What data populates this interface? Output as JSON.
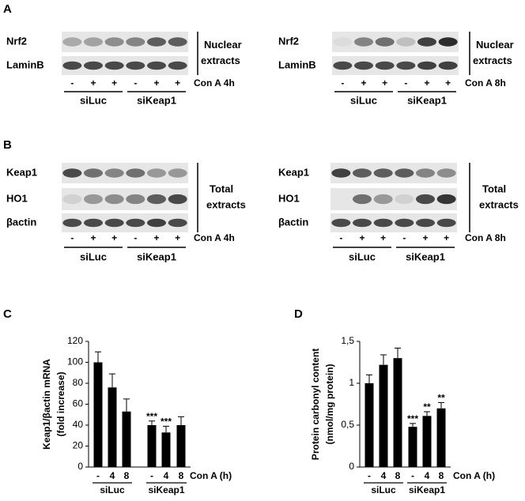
{
  "panels": [
    {
      "label": "A",
      "blots": [
        {
          "rows": [
            "Nrf2",
            "LaminB"
          ],
          "bracket": [
            "Nuclear",
            "extracts"
          ],
          "treatment": [
            "-",
            "+",
            "+",
            "-",
            "+",
            "+"
          ],
          "condition": "Con A 4h",
          "groups": [
            "siLuc",
            "siKeap1"
          ]
        },
        {
          "rows": [
            "Nrf2",
            "LaminB"
          ],
          "bracket": [
            "Nuclear",
            "extracts"
          ],
          "treatment": [
            "-",
            "+",
            "+",
            "-",
            "+",
            "+"
          ],
          "condition": "Con A 8h",
          "groups": [
            "siLuc",
            "siKeap1"
          ]
        }
      ]
    },
    {
      "label": "B",
      "blots": [
        {
          "rows": [
            "Keap1",
            "HO1",
            "βactin"
          ],
          "bracket": [
            "Total",
            "extracts"
          ],
          "treatment": [
            "-",
            "+",
            "+",
            "-",
            "+",
            "+"
          ],
          "condition": "Con A 4h",
          "groups": [
            "siLuc",
            "siKeap1"
          ]
        },
        {
          "rows": [
            "Keap1",
            "HO1",
            "βactin"
          ],
          "bracket": [
            "Total",
            "extracts"
          ],
          "treatment": [
            "-",
            "+",
            "+",
            "-",
            "+",
            "+"
          ],
          "condition": "Con A 8h",
          "groups": [
            "siLuc",
            "siKeap1"
          ]
        }
      ]
    }
  ],
  "chart_data": [
    {
      "type": "bar",
      "panel": "C",
      "ylabel": [
        "Keap1/βactin mRNA",
        "(fold increase)"
      ],
      "xlabel": "Con A (h)",
      "categories": [
        "-",
        "4",
        "8",
        "-",
        "4",
        "8"
      ],
      "groups": [
        "siLuc",
        "siKeap1"
      ],
      "values": [
        100,
        76,
        53,
        40,
        33,
        40
      ],
      "errors": [
        10,
        13,
        12,
        4,
        6,
        8
      ],
      "significance": [
        null,
        null,
        null,
        "***",
        "***",
        null
      ],
      "color": "#000000",
      "ylim": [
        0,
        120
      ],
      "yticks": [
        0,
        20,
        40,
        60,
        80,
        100,
        120
      ]
    },
    {
      "type": "bar",
      "panel": "D",
      "ylabel": [
        "Protein carbonyl content",
        "(nmol/mg protein)"
      ],
      "xlabel": "Con A (h)",
      "categories": [
        "-",
        "4",
        "8",
        "-",
        "4",
        "8"
      ],
      "groups": [
        "siLuc",
        "siKeap1"
      ],
      "values": [
        1.0,
        1.22,
        1.3,
        0.48,
        0.61,
        0.7
      ],
      "errors": [
        0.1,
        0.12,
        0.12,
        0.04,
        0.05,
        0.07
      ],
      "significance": [
        null,
        null,
        null,
        "***",
        "**",
        "**"
      ],
      "color": "#000000",
      "ylim": [
        0,
        1.5
      ],
      "yticks": [
        0,
        {
          "value": 0.5,
          "label": "0,5"
        },
        1,
        {
          "value": 1.5,
          "label": "1,5"
        }
      ]
    }
  ]
}
